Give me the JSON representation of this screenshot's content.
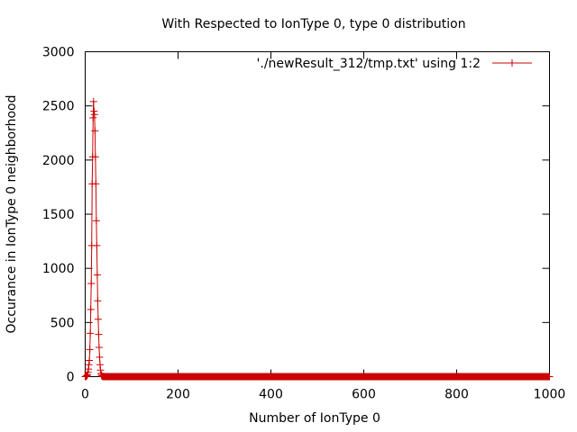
{
  "chart_data": {
    "type": "line",
    "title": "With Respected to IonType 0, type 0 distribution",
    "xlabel": "Number of IonType 0",
    "ylabel": "Occurance in IonType 0 neighborhood",
    "xlim": [
      0,
      1000
    ],
    "ylim": [
      0,
      3000
    ],
    "xticks": [
      "0",
      "200",
      "400",
      "600",
      "800",
      "1000"
    ],
    "yticks": [
      "0",
      "500",
      "1000",
      "1500",
      "2000",
      "2500",
      "3000"
    ],
    "grid": false,
    "legend_position": "top-right",
    "series": [
      {
        "name": "'./newResult_312/tmp.txt' using 1:2",
        "color": "#cc0000",
        "marker": "plus",
        "x": [
          0,
          1,
          2,
          3,
          4,
          5,
          6,
          7,
          8,
          9,
          10,
          11,
          12,
          13,
          14,
          15,
          16,
          17,
          18,
          19,
          20,
          21,
          22,
          23,
          24,
          25,
          26,
          27,
          28,
          29,
          30,
          31,
          32,
          33,
          34,
          35,
          36,
          37,
          38,
          39,
          40,
          41,
          42,
          43,
          44,
          45,
          50,
          60,
          70,
          80,
          90,
          100,
          150,
          200,
          250,
          300,
          350,
          400,
          450,
          500,
          550,
          600,
          650,
          700,
          750,
          800,
          850,
          900,
          950,
          1000
        ],
        "y": [
          0,
          1,
          2,
          5,
          10,
          20,
          40,
          70,
          110,
          150,
          250,
          400,
          620,
          860,
          1210,
          1780,
          2030,
          2390,
          2540,
          2450,
          2420,
          2270,
          2030,
          1780,
          1440,
          1210,
          940,
          700,
          530,
          390,
          270,
          180,
          110,
          60,
          30,
          15,
          5,
          2,
          1,
          0,
          0,
          0,
          0,
          0,
          0,
          0,
          0,
          0,
          0,
          0,
          0,
          0,
          0,
          0,
          0,
          0,
          0,
          0,
          0,
          0,
          0,
          0,
          0,
          0,
          0,
          0,
          0,
          0,
          0,
          0
        ]
      }
    ]
  }
}
